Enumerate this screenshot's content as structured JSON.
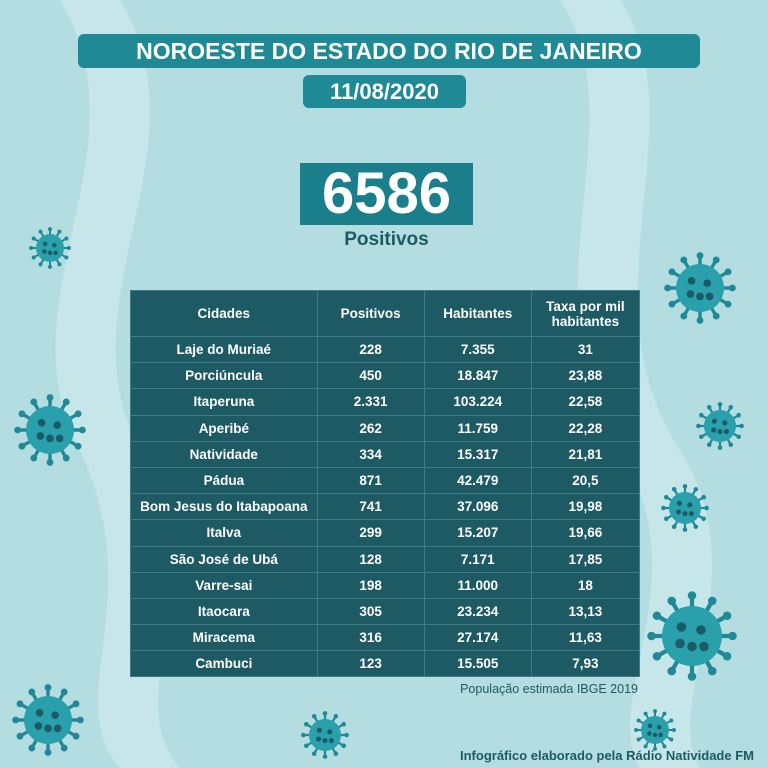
{
  "header": {
    "title": "NOROESTE DO ESTADO DO RIO DE JANEIRO",
    "date": "11/08/2020"
  },
  "total": {
    "value": "6586",
    "label": "Positivos"
  },
  "table": {
    "columns": [
      "Cidades",
      "Positivos",
      "Habitantes",
      "Taxa por mil habitantes"
    ],
    "rows": [
      [
        "Laje do Muriaé",
        "228",
        "7.355",
        "31"
      ],
      [
        "Porciúncula",
        "450",
        "18.847",
        "23,88"
      ],
      [
        "Itaperuna",
        "2.331",
        "103.224",
        "22,58"
      ],
      [
        "Aperibé",
        "262",
        "11.759",
        "22,28"
      ],
      [
        "Natividade",
        "334",
        "15.317",
        "21,81"
      ],
      [
        "Pádua",
        "871",
        "42.479",
        "20,5"
      ],
      [
        "Bom Jesus do Itabapoana",
        "741",
        "37.096",
        "19,98"
      ],
      [
        "Italva",
        "299",
        "15.207",
        "19,66"
      ],
      [
        "São José de Ubá",
        "128",
        "7.171",
        "17,85"
      ],
      [
        "Varre-sai",
        "198",
        "11.000",
        "18"
      ],
      [
        "Itaocara",
        "305",
        "23.234",
        "13,13"
      ],
      [
        "Miracema",
        "316",
        "27.174",
        "11,63"
      ],
      [
        "Cambuci",
        "123",
        "15.505",
        "7,93"
      ]
    ]
  },
  "footnote": "População estimada IBGE 2019",
  "credit": "Infográfico elaborado pela Rádio Natividade FM"
}
